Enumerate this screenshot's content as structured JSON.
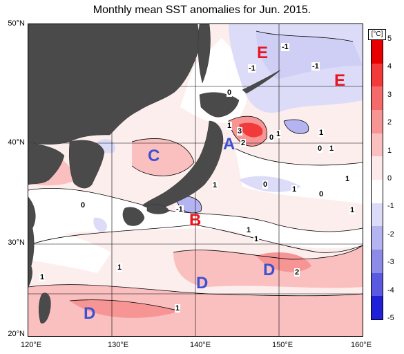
{
  "title": "Monthly mean SST anomalies for Jun. 2015.",
  "lat_labels": [
    "50°N",
    "40°N",
    "30°N",
    "20°N"
  ],
  "lon_labels": [
    "120°E",
    "130°E",
    "140°E",
    "150°E",
    "160°E"
  ],
  "colorbar": {
    "unit": "[°C]",
    "ticks": [
      "5",
      "4",
      "3",
      "2",
      "1",
      "0",
      "-1",
      "-2",
      "-3",
      "-4",
      "-5"
    ],
    "colors": [
      "#e60000",
      "#f23a3a",
      "#f56a6a",
      "#f79595",
      "#fac0c0",
      "#fde9e9",
      "#ffffff",
      "#dcdcf8",
      "#b4b4f0",
      "#8c8ce8",
      "#5a5ae0",
      "#2020d8"
    ]
  },
  "regions": [
    {
      "label": "E",
      "color": "#e8141e"
    },
    {
      "label": "E",
      "color": "#e8141e"
    },
    {
      "label": "A",
      "color": "#3c50d2"
    },
    {
      "label": "C",
      "color": "#3c50d2"
    },
    {
      "label": "B",
      "color": "#e8141e"
    },
    {
      "label": "D",
      "color": "#3c50d2"
    },
    {
      "label": "D",
      "color": "#3c50d2"
    },
    {
      "label": "D",
      "color": "#3c50d2"
    }
  ],
  "contour_labels": [
    "-1",
    "-1",
    "-1",
    "0",
    "1",
    "3",
    "2",
    "0",
    "1",
    "1",
    "0",
    "1",
    "1",
    "0",
    "1",
    "1",
    "0",
    "1",
    "-1",
    "0",
    "1",
    "1",
    "1",
    "2",
    "1",
    "1"
  ]
}
